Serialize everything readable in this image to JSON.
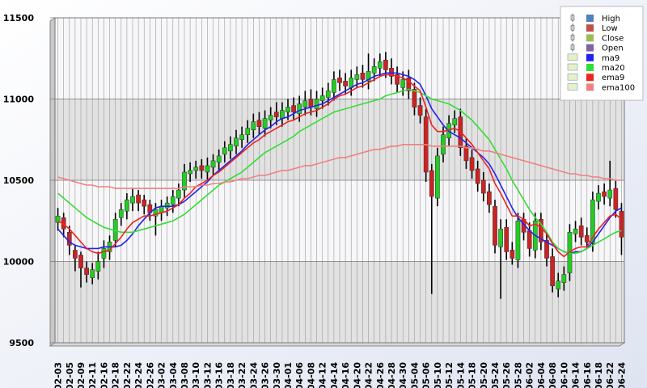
{
  "chart_data": {
    "type": "candlestick",
    "ylim": [
      9500,
      11500
    ],
    "yticks": [
      9500,
      10000,
      10500,
      11000,
      11500
    ],
    "grid": true,
    "legend_position": "upper right",
    "up_color": "#22cc22",
    "down_color": "#cc2222",
    "categories": [
      "-02-03",
      null,
      "-02-05",
      null,
      "-02-09",
      null,
      "-02-11",
      null,
      "-02-16",
      null,
      "-02-18",
      null,
      "-02-22",
      null,
      "-02-24",
      null,
      "-02-26",
      null,
      "-03-02",
      null,
      "-03-04",
      null,
      "-03-08",
      null,
      "-03-10",
      null,
      "-03-12",
      null,
      "-03-16",
      null,
      "-03-18",
      null,
      "-03-22",
      null,
      "-03-24",
      null,
      "-03-26",
      null,
      "-03-30",
      null,
      "-04-01",
      null,
      "-04-06",
      null,
      "-04-08",
      null,
      "-04-12",
      null,
      "-04-14",
      null,
      "-04-16",
      null,
      "-04-20",
      null,
      "-04-22",
      null,
      "-04-26",
      null,
      "-04-28",
      null,
      "-04-30",
      null,
      "-05-04",
      null,
      "-05-06",
      null,
      "-05-10",
      null,
      "-05-12",
      null,
      "-05-14",
      null,
      "-05-18",
      null,
      "-05-20",
      null,
      "-05-24",
      null,
      "-05-26",
      null,
      "-05-28",
      null,
      "-06-02",
      null,
      "-06-04",
      null,
      "-06-08",
      null,
      "-06-10",
      null,
      "-06-14",
      null,
      "-06-16",
      null,
      "-06-18",
      null,
      "-06-22",
      null,
      "-06-24"
    ],
    "high": {
      "name": "High",
      "color": "#4f81bd",
      "values": [
        10330,
        10300,
        10220,
        10100,
        10060,
        10000,
        9990,
        10060,
        10130,
        10160,
        10300,
        10360,
        10420,
        10450,
        10440,
        10410,
        10380,
        10360,
        10380,
        10400,
        10440,
        10480,
        10600,
        10610,
        10620,
        10630,
        10640,
        10660,
        10690,
        10740,
        10770,
        10810,
        10830,
        10870,
        10910,
        10920,
        10930,
        10950,
        10980,
        10980,
        11000,
        11010,
        11020,
        11050,
        11060,
        11050,
        11070,
        11100,
        11170,
        11180,
        11160,
        11180,
        11200,
        11210,
        11280,
        11250,
        11280,
        11290,
        11250,
        11200,
        11170,
        11180,
        11100,
        11010,
        10940,
        10600,
        10700,
        10830,
        10900,
        10930,
        10940,
        10760,
        10690,
        10620,
        10550,
        10480,
        10380,
        10260,
        10260,
        10120,
        10300,
        10300,
        10240,
        10300,
        10300,
        10180,
        10080,
        9930,
        9970,
        10230,
        10250,
        10270,
        10210,
        10430,
        10470,
        10480,
        10620,
        10500,
        10360
      ]
    },
    "low": {
      "name": "Low",
      "color": "#c0504d",
      "values": [
        10190,
        10150,
        10040,
        9940,
        9840,
        9870,
        9860,
        9890,
        9960,
        10010,
        10090,
        10220,
        10260,
        10310,
        10310,
        10290,
        10250,
        10160,
        10250,
        10280,
        10300,
        10340,
        10390,
        10490,
        10510,
        10510,
        10500,
        10530,
        10560,
        10610,
        10630,
        10660,
        10700,
        10730,
        10760,
        10780,
        10770,
        10820,
        10840,
        10830,
        10870,
        10870,
        10860,
        10900,
        10900,
        10890,
        10940,
        10960,
        10990,
        11050,
        11030,
        11020,
        11070,
        11070,
        11060,
        11110,
        11140,
        11130,
        11090,
        11040,
        11020,
        11000,
        10900,
        10850,
        10490,
        9800,
        10340,
        10610,
        10710,
        10790,
        10650,
        10570,
        10510,
        10430,
        10370,
        10300,
        10050,
        9770,
        10010,
        9980,
        9960,
        10130,
        10030,
        10020,
        10070,
        9970,
        9810,
        9780,
        9820,
        9880,
        10120,
        10100,
        10080,
        10060,
        10320,
        10350,
        10340,
        10270,
        10040
      ]
    },
    "close": {
      "name": "Close",
      "color": "#9bbb59",
      "values": [
        10280,
        10200,
        10100,
        10020,
        9960,
        9920,
        9950,
        10000,
        10080,
        10120,
        10260,
        10320,
        10380,
        10400,
        10360,
        10340,
        10300,
        10320,
        10340,
        10360,
        10400,
        10440,
        10550,
        10560,
        10580,
        10560,
        10590,
        10620,
        10650,
        10700,
        10720,
        10760,
        10780,
        10820,
        10860,
        10830,
        10880,
        10900,
        10890,
        10930,
        10950,
        10920,
        10970,
        10990,
        10950,
        11000,
        11020,
        11050,
        11120,
        11100,
        11080,
        11130,
        11150,
        11120,
        11170,
        11200,
        11230,
        11180,
        11140,
        11090,
        11120,
        11050,
        10950,
        10900,
        10550,
        10400,
        10650,
        10780,
        10850,
        10880,
        10700,
        10620,
        10560,
        10480,
        10420,
        10350,
        10100,
        10200,
        10060,
        10020,
        10250,
        10180,
        10080,
        10250,
        10120,
        10020,
        9850,
        9880,
        9920,
        10180,
        10200,
        10150,
        10120,
        10380,
        10420,
        10400,
        10440,
        10320,
        10150
      ]
    },
    "open": {
      "name": "Open",
      "color": "#8064a2",
      "values": [
        10240,
        10270,
        10180,
        10070,
        10040,
        9960,
        9900,
        9940,
        10020,
        10060,
        10130,
        10270,
        10310,
        10360,
        10410,
        10380,
        10350,
        10280,
        10300,
        10330,
        10350,
        10390,
        10440,
        10540,
        10560,
        10590,
        10550,
        10580,
        10610,
        10660,
        10680,
        10710,
        10750,
        10780,
        10810,
        10870,
        10820,
        10870,
        10920,
        10880,
        10920,
        10960,
        10910,
        10950,
        11000,
        10940,
        10990,
        11010,
        11040,
        11130,
        11110,
        11070,
        11120,
        11160,
        11110,
        11160,
        11190,
        11240,
        11190,
        11150,
        11070,
        11130,
        11060,
        10960,
        10890,
        10560,
        10390,
        10660,
        10760,
        10840,
        10890,
        10710,
        10640,
        10570,
        10500,
        10430,
        10340,
        10090,
        10210,
        10070,
        10010,
        10260,
        10190,
        10070,
        10260,
        10130,
        10030,
        9830,
        9870,
        9930,
        10170,
        10220,
        10160,
        10110,
        10370,
        10430,
        10390,
        10450,
        10310
      ]
    },
    "lines": [
      {
        "name": "ma9",
        "color": "#2222ee",
        "values": [
          10200,
          10160,
          10120,
          10100,
          10090,
          10080,
          10080,
          10080,
          10090,
          10090,
          10090,
          10100,
          10130,
          10170,
          10220,
          10260,
          10300,
          10330,
          10340,
          10340,
          10340,
          10350,
          10370,
          10400,
          10430,
          10460,
          10490,
          10530,
          10560,
          10590,
          10620,
          10650,
          10680,
          10720,
          10750,
          10780,
          10810,
          10830,
          10860,
          10880,
          10890,
          10910,
          10930,
          10940,
          10950,
          10960,
          10970,
          10990,
          11010,
          11030,
          11050,
          11070,
          11090,
          11100,
          11120,
          11140,
          11150,
          11160,
          11160,
          11160,
          11150,
          11140,
          11120,
          11090,
          11020,
          10940,
          10890,
          10840,
          10800,
          10780,
          10760,
          10730,
          10700,
          10670,
          10640,
          10600,
          10540,
          10470,
          10400,
          10330,
          10270,
          10230,
          10190,
          10160,
          10140,
          10120,
          10100,
          10080,
          10060,
          10050,
          10060,
          10060,
          10080,
          10120,
          10170,
          10220,
          10270,
          10310,
          10330
        ]
      },
      {
        "name": "ma20",
        "color": "#33dd33",
        "values": [
          10420,
          10390,
          10360,
          10330,
          10300,
          10270,
          10250,
          10230,
          10210,
          10200,
          10190,
          10180,
          10180,
          10180,
          10190,
          10200,
          10210,
          10220,
          10230,
          10240,
          10250,
          10270,
          10290,
          10320,
          10350,
          10380,
          10410,
          10440,
          10470,
          10490,
          10510,
          10530,
          10550,
          10580,
          10610,
          10640,
          10670,
          10690,
          10710,
          10730,
          10750,
          10770,
          10800,
          10820,
          10840,
          10860,
          10880,
          10900,
          10920,
          10930,
          10940,
          10950,
          10960,
          10970,
          10980,
          10990,
          11000,
          11020,
          11030,
          11040,
          11050,
          11060,
          11050,
          11040,
          11020,
          11000,
          10990,
          10980,
          10970,
          10950,
          10930,
          10900,
          10870,
          10830,
          10790,
          10750,
          10690,
          10630,
          10570,
          10500,
          10440,
          10380,
          10320,
          10270,
          10230,
          10180,
          10120,
          10080,
          10060,
          10050,
          10050,
          10060,
          10080,
          10100,
          10120,
          10140,
          10160,
          10180,
          10190
        ]
      },
      {
        "name": "ema9",
        "color": "#ee2222",
        "values": [
          10250,
          10230,
          10200,
          10160,
          10120,
          10080,
          10060,
          10050,
          10060,
          10070,
          10110,
          10150,
          10200,
          10240,
          10260,
          10280,
          10280,
          10290,
          10300,
          10310,
          10330,
          10350,
          10390,
          10420,
          10460,
          10480,
          10500,
          10530,
          10550,
          10580,
          10610,
          10640,
          10670,
          10700,
          10730,
          10750,
          10780,
          10800,
          10820,
          10840,
          10860,
          10870,
          10890,
          10910,
          10920,
          10930,
          10950,
          10970,
          11000,
          11020,
          11030,
          11050,
          11070,
          11080,
          11100,
          11120,
          11140,
          11150,
          11150,
          11140,
          11130,
          11110,
          11080,
          11050,
          10950,
          10840,
          10800,
          10800,
          10810,
          10820,
          10800,
          10760,
          10720,
          10670,
          10620,
          10570,
          10480,
          10420,
          10350,
          10280,
          10280,
          10260,
          10220,
          10230,
          10210,
          10170,
          10110,
          10060,
          10030,
          10060,
          10080,
          10090,
          10090,
          10150,
          10200,
          10240,
          10280,
          10290,
          10260
        ]
      },
      {
        "name": "ema100",
        "color": "#f08080",
        "values": [
          10520,
          10510,
          10500,
          10490,
          10480,
          10470,
          10470,
          10460,
          10460,
          10460,
          10450,
          10450,
          10450,
          10450,
          10450,
          10450,
          10450,
          10450,
          10450,
          10450,
          10450,
          10450,
          10460,
          10460,
          10460,
          10470,
          10470,
          10480,
          10480,
          10490,
          10490,
          10500,
          10510,
          10510,
          10520,
          10530,
          10530,
          10540,
          10550,
          10560,
          10560,
          10570,
          10580,
          10590,
          10590,
          10600,
          10610,
          10620,
          10630,
          10640,
          10640,
          10650,
          10660,
          10670,
          10680,
          10690,
          10690,
          10700,
          10710,
          10710,
          10720,
          10720,
          10720,
          10720,
          10720,
          10710,
          10710,
          10710,
          10710,
          10710,
          10710,
          10700,
          10700,
          10690,
          10680,
          10680,
          10670,
          10660,
          10650,
          10640,
          10630,
          10620,
          10610,
          10600,
          10590,
          10580,
          10570,
          10560,
          10550,
          10540,
          10540,
          10530,
          10530,
          10520,
          10520,
          10510,
          10510,
          10500,
          10500
        ]
      }
    ]
  }
}
